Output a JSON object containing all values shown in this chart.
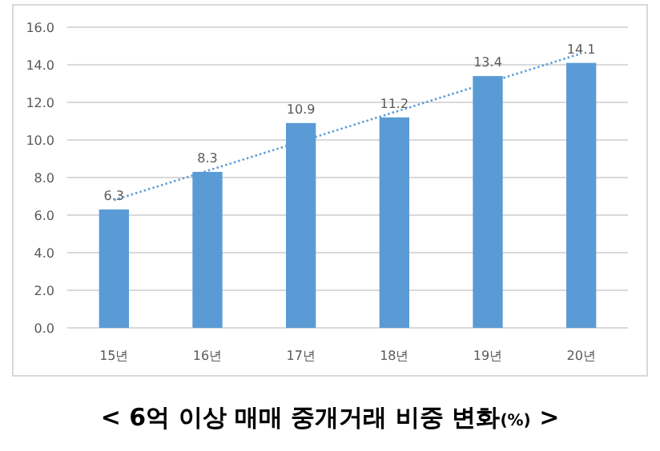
{
  "chart_data": {
    "type": "bar",
    "title": "< 6억 이상 매매 중개거래 비중 변화(%) >",
    "categories": [
      "15년",
      "16년",
      "17년",
      "18년",
      "19년",
      "20년"
    ],
    "series": [
      {
        "color": "#5b9bd5",
        "values": [
          6.3,
          8.3,
          10.9,
          11.2,
          13.4,
          14.1
        ],
        "value_labels": [
          "6.3",
          "8.3",
          "10.9",
          "11.2",
          "13.4",
          "14.1"
        ]
      },
      {
        "type": "line",
        "color": "#5b9bd5",
        "line_style": "dotted",
        "x": [
          "15년",
          "20년"
        ],
        "values": [
          6.8,
          14.6
        ]
      }
    ],
    "ylim": [
      0,
      16
    ],
    "yticks": [
      {
        "value": 0,
        "label": "0.0"
      },
      {
        "value": 2,
        "label": "2.0"
      },
      {
        "value": 4,
        "label": "4.0"
      },
      {
        "value": 6,
        "label": "6.0"
      },
      {
        "value": 8,
        "label": "8.0"
      },
      {
        "value": 10,
        "label": "10.0"
      },
      {
        "value": 12,
        "label": "12.0"
      },
      {
        "value": 14,
        "label": "14.0"
      },
      {
        "value": 16,
        "label": "16.0"
      }
    ],
    "grid": "y"
  }
}
